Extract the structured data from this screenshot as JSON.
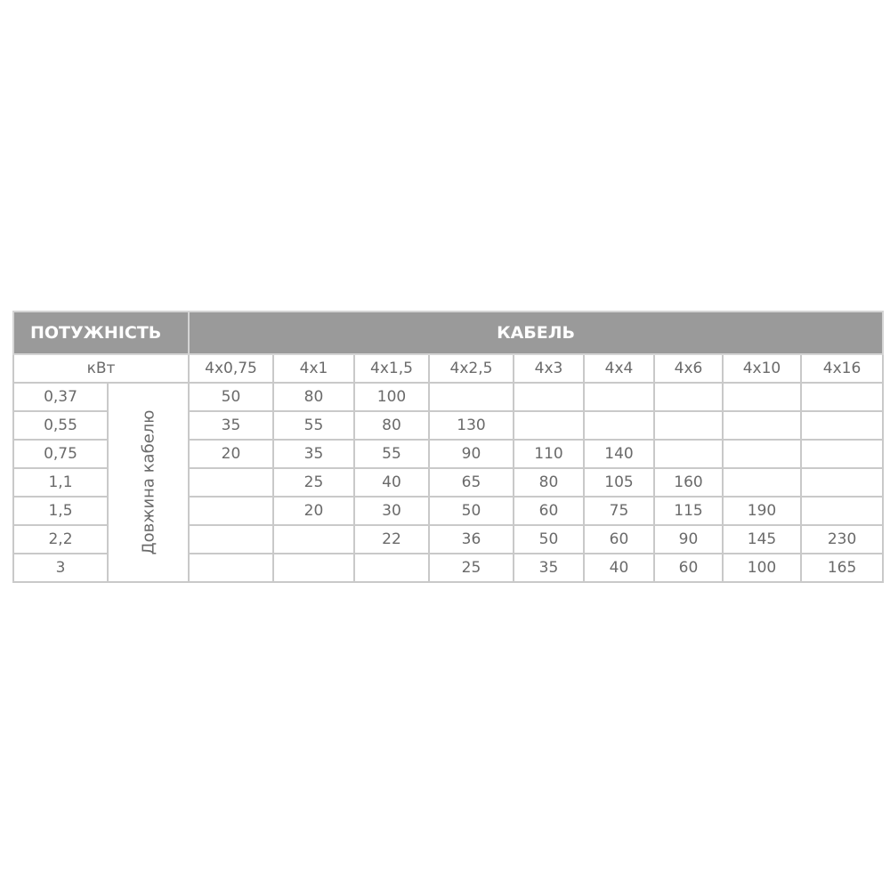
{
  "header": {
    "power_label": "ПОТУЖНІСТЬ",
    "cable_label": "КАБЕЛЬ"
  },
  "unit_label": "кВт",
  "length_label": "Довжина кабелю",
  "columns": [
    "4x0,75",
    "4x1",
    "4x1,5",
    "4x2,5",
    "4x3",
    "4x4",
    "4x6",
    "4x10",
    "4x16"
  ],
  "rows": [
    {
      "power": "0,37",
      "values": [
        "50",
        "80",
        "100",
        "",
        "",
        "",
        "",
        "",
        ""
      ]
    },
    {
      "power": "0,55",
      "values": [
        "35",
        "55",
        "80",
        "130",
        "",
        "",
        "",
        "",
        ""
      ]
    },
    {
      "power": "0,75",
      "values": [
        "20",
        "35",
        "55",
        "90",
        "110",
        "140",
        "",
        "",
        ""
      ]
    },
    {
      "power": "1,1",
      "values": [
        "",
        "25",
        "40",
        "65",
        "80",
        "105",
        "160",
        "",
        ""
      ]
    },
    {
      "power": "1,5",
      "values": [
        "",
        "20",
        "30",
        "50",
        "60",
        "75",
        "115",
        "190",
        ""
      ]
    },
    {
      "power": "2,2",
      "values": [
        "",
        "",
        "22",
        "36",
        "50",
        "60",
        "90",
        "145",
        "230"
      ]
    },
    {
      "power": "3",
      "values": [
        "",
        "",
        "",
        "25",
        "35",
        "40",
        "60",
        "100",
        "165"
      ]
    }
  ]
}
